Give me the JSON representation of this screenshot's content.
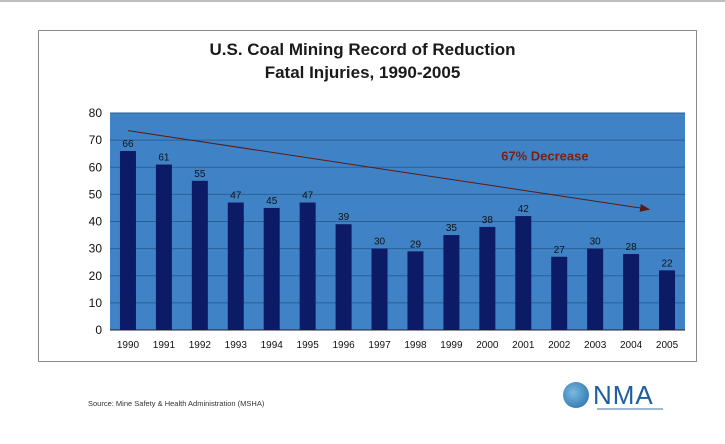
{
  "chart_data": {
    "type": "bar",
    "title": "U.S. Coal Mining Record of Reduction",
    "subtitle": "Fatal Injuries, 1990-2005",
    "categories": [
      "1990",
      "1991",
      "1992",
      "1993",
      "1994",
      "1995",
      "1996",
      "1997",
      "1998",
      "1999",
      "2000",
      "2001",
      "2002",
      "2003",
      "2004",
      "2005"
    ],
    "values": [
      66,
      61,
      55,
      47,
      45,
      47,
      39,
      30,
      29,
      35,
      38,
      42,
      27,
      30,
      28,
      22
    ],
    "ylim": [
      0,
      80
    ],
    "yticks": [
      0,
      10,
      20,
      30,
      40,
      50,
      60,
      70,
      80
    ],
    "grid": true,
    "annotation": "67% Decrease",
    "colors": {
      "plot_bg": "#3f83c6",
      "bar": "#0d1a66",
      "annotation": "#7a1f12",
      "arrow": "#5a1a14"
    }
  },
  "source": "Source: Mine Safety & Health Administration (MSHA)",
  "logo": {
    "text": "NMA",
    "icon": "nma-globe-icon"
  }
}
